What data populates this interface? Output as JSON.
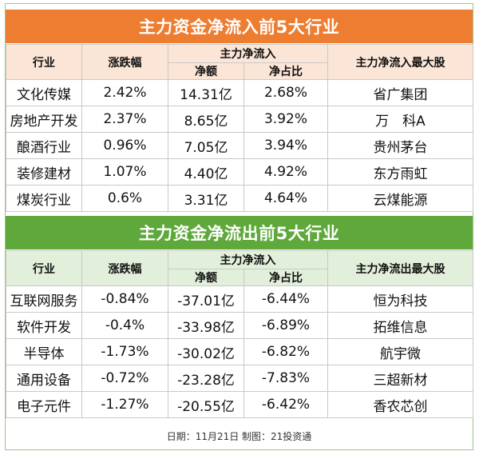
{
  "inflow": {
    "title": "主力资金净流入前5大行业",
    "headers": {
      "industry": "行业",
      "change": "涨跌幅",
      "group": "主力净流入",
      "net": "净额",
      "ratio": "净占比",
      "top_stock": "主力净流入最大股"
    },
    "rows": [
      {
        "industry": "文化传媒",
        "change": "2.42%",
        "net": "14.31亿",
        "ratio": "2.68%",
        "stock": "省广集团"
      },
      {
        "industry": "房地产开发",
        "change": "2.37%",
        "net": "8.65亿",
        "ratio": "3.92%",
        "stock": "万　科A"
      },
      {
        "industry": "酿酒行业",
        "change": "0.96%",
        "net": "7.05亿",
        "ratio": "3.94%",
        "stock": "贵州茅台"
      },
      {
        "industry": "装修建材",
        "change": "1.07%",
        "net": "4.40亿",
        "ratio": "4.92%",
        "stock": "东方雨虹"
      },
      {
        "industry": "煤炭行业",
        "change": "0.6%",
        "net": "3.31亿",
        "ratio": "4.64%",
        "stock": "云煤能源"
      }
    ]
  },
  "outflow": {
    "title": "主力资金净流出前5大行业",
    "headers": {
      "industry": "行业",
      "change": "涨跌幅",
      "group": "主力净流入",
      "net": "净额",
      "ratio": "净占比",
      "top_stock": "主力净流出最大股"
    },
    "rows": [
      {
        "industry": "互联网服务",
        "change": "-0.84%",
        "net": "-37.01亿",
        "ratio": "-6.44%",
        "stock": "恒为科技"
      },
      {
        "industry": "软件开发",
        "change": "-0.4%",
        "net": "-33.98亿",
        "ratio": "-6.89%",
        "stock": "拓维信息"
      },
      {
        "industry": "半导体",
        "change": "-1.73%",
        "net": "-30.02亿",
        "ratio": "-6.82%",
        "stock": "航宇微"
      },
      {
        "industry": "通用设备",
        "change": "-0.72%",
        "net": "-23.28亿",
        "ratio": "-7.83%",
        "stock": "三超新材"
      },
      {
        "industry": "电子元件",
        "change": "-1.27%",
        "net": "-20.55亿",
        "ratio": "-6.42%",
        "stock": "香农芯创"
      }
    ]
  },
  "footer": "日期：11月21日  制图：21投资通",
  "colors": {
    "inflow_title_bg": "#ed7d31",
    "inflow_header_bg": "#fbe5d6",
    "outflow_title_bg": "#5fa83c",
    "outflow_header_bg": "#e2efda"
  }
}
